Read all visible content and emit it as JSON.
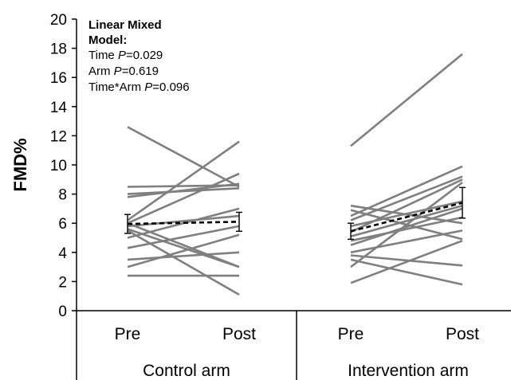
{
  "chart_data": {
    "type": "line",
    "ylabel": "FMD%",
    "ylim": [
      0,
      20
    ],
    "yticks": [
      0,
      2,
      4,
      6,
      8,
      10,
      12,
      14,
      16,
      18,
      20
    ],
    "groups": [
      {
        "name": "Control arm",
        "categories": [
          "Pre",
          "Post"
        ],
        "individual_lines": [
          [
            12.6,
            8.5
          ],
          [
            8.5,
            8.6
          ],
          [
            8.0,
            8.4
          ],
          [
            7.8,
            8.7
          ],
          [
            6.2,
            11.6
          ],
          [
            6.0,
            9.4
          ],
          [
            6.0,
            3.0
          ],
          [
            5.8,
            6.5
          ],
          [
            5.6,
            3.0
          ],
          [
            5.5,
            1.1
          ],
          [
            5.0,
            7.0
          ],
          [
            4.3,
            5.8
          ],
          [
            3.5,
            4.0
          ],
          [
            3.0,
            5.2
          ],
          [
            2.4,
            2.4
          ]
        ],
        "mean": [
          5.95,
          6.1
        ],
        "error": [
          0.65,
          0.65
        ]
      },
      {
        "name": "Intervention arm",
        "categories": [
          "Pre",
          "Post"
        ],
        "individual_lines": [
          [
            11.3,
            17.6
          ],
          [
            7.2,
            6.0
          ],
          [
            6.9,
            4.9
          ],
          [
            6.5,
            9.9
          ],
          [
            6.2,
            9.2
          ],
          [
            5.8,
            7.5
          ],
          [
            5.4,
            9.0
          ],
          [
            5.1,
            7.2
          ],
          [
            4.8,
            6.4
          ],
          [
            4.5,
            7.0
          ],
          [
            4.0,
            5.5
          ],
          [
            3.8,
            3.1
          ],
          [
            3.5,
            1.8
          ],
          [
            3.0,
            8.8
          ],
          [
            1.9,
            4.8
          ]
        ],
        "mean": [
          5.45,
          7.4
        ],
        "error": [
          0.55,
          1.05
        ]
      }
    ],
    "annotation": {
      "heading_lines": [
        "Linear Mixed",
        "Model:"
      ],
      "stats": [
        {
          "prefix": "Time ",
          "p": "P",
          "value": "=0.029"
        },
        {
          "prefix": "Arm ",
          "p": "P",
          "value": "=0.619"
        },
        {
          "prefix": "Time*Arm ",
          "p": "P",
          "value": "=0.096"
        }
      ]
    },
    "colors": {
      "individual_line": "#7f7f7f",
      "mean_line": "#000000",
      "axis": "#000000"
    }
  }
}
